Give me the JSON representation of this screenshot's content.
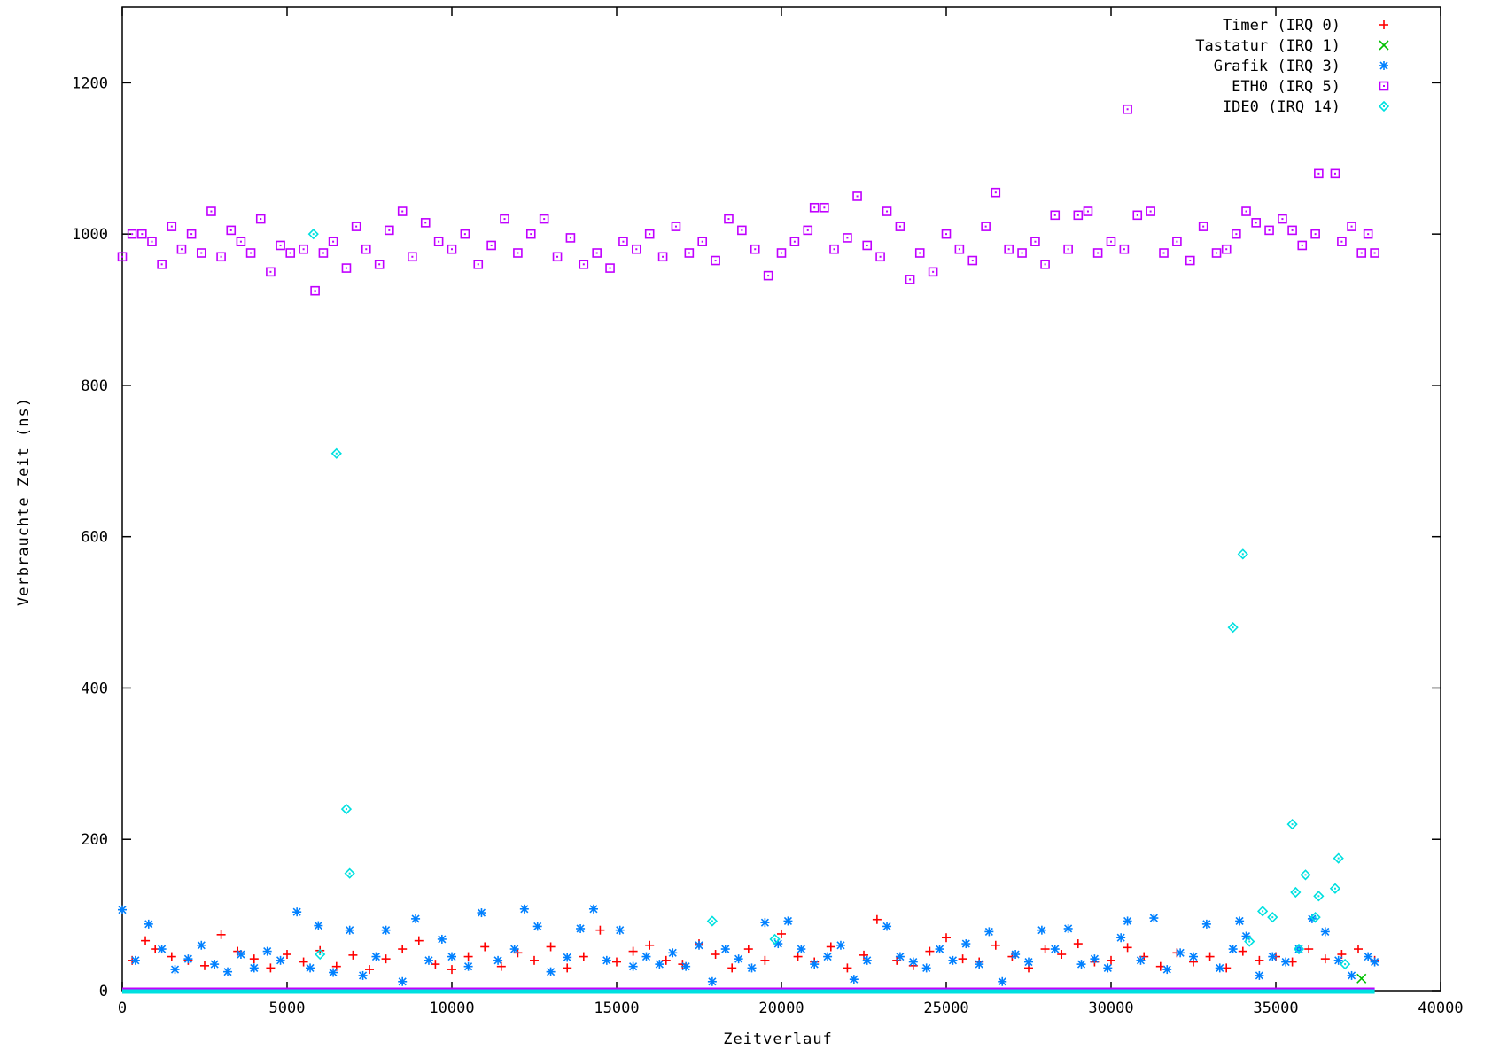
{
  "chart_data": {
    "type": "scatter",
    "xlabel": "Zeitverlauf",
    "ylabel": "Verbrauchte Zeit (ns)",
    "xlim": [
      0,
      40000
    ],
    "ylim": [
      0,
      1300
    ],
    "x_ticks": [
      0,
      5000,
      10000,
      15000,
      20000,
      25000,
      30000,
      35000,
      40000
    ],
    "y_ticks": [
      0,
      200,
      400,
      600,
      800,
      1000,
      1200
    ],
    "grid": false,
    "legend_position": "top-right",
    "series": [
      {
        "name": "Timer (IRQ 0)",
        "marker": "plus",
        "color": "#ff0000",
        "baseline": 0,
        "points": [
          [
            300,
            40
          ],
          [
            700,
            66
          ],
          [
            1000,
            55
          ],
          [
            1500,
            45
          ],
          [
            2000,
            40
          ],
          [
            2500,
            33
          ],
          [
            3000,
            74
          ],
          [
            3500,
            52
          ],
          [
            4000,
            42
          ],
          [
            4500,
            30
          ],
          [
            5000,
            48
          ],
          [
            5500,
            38
          ],
          [
            6000,
            53
          ],
          [
            6500,
            32
          ],
          [
            7000,
            47
          ],
          [
            7500,
            28
          ],
          [
            8000,
            42
          ],
          [
            8500,
            55
          ],
          [
            9000,
            66
          ],
          [
            9500,
            35
          ],
          [
            10000,
            28
          ],
          [
            10500,
            45
          ],
          [
            11000,
            58
          ],
          [
            11500,
            32
          ],
          [
            12000,
            50
          ],
          [
            12500,
            40
          ],
          [
            13000,
            58
          ],
          [
            13500,
            30
          ],
          [
            14000,
            45
          ],
          [
            14500,
            80
          ],
          [
            15000,
            38
          ],
          [
            15500,
            52
          ],
          [
            16000,
            60
          ],
          [
            16500,
            40
          ],
          [
            17000,
            35
          ],
          [
            17500,
            62
          ],
          [
            18000,
            48
          ],
          [
            18500,
            30
          ],
          [
            19000,
            55
          ],
          [
            19500,
            40
          ],
          [
            20000,
            75
          ],
          [
            20500,
            45
          ],
          [
            21000,
            38
          ],
          [
            21500,
            58
          ],
          [
            22000,
            30
          ],
          [
            22500,
            47
          ],
          [
            22900,
            94
          ],
          [
            23500,
            40
          ],
          [
            24000,
            33
          ],
          [
            24500,
            52
          ],
          [
            25000,
            70
          ],
          [
            25500,
            42
          ],
          [
            26000,
            38
          ],
          [
            26500,
            60
          ],
          [
            27000,
            45
          ],
          [
            27500,
            30
          ],
          [
            28000,
            55
          ],
          [
            28500,
            48
          ],
          [
            29000,
            62
          ],
          [
            29500,
            38
          ],
          [
            30000,
            40
          ],
          [
            30500,
            57
          ],
          [
            31000,
            45
          ],
          [
            31500,
            32
          ],
          [
            32000,
            50
          ],
          [
            32500,
            38
          ],
          [
            33000,
            45
          ],
          [
            33500,
            30
          ],
          [
            34000,
            52
          ],
          [
            34500,
            40
          ],
          [
            35000,
            45
          ],
          [
            35500,
            38
          ],
          [
            36000,
            55
          ],
          [
            36500,
            42
          ],
          [
            37000,
            48
          ],
          [
            37500,
            55
          ],
          [
            38000,
            40
          ]
        ]
      },
      {
        "name": "Tastatur (IRQ 1)",
        "marker": "cross",
        "color": "#00c000",
        "baseline": 0,
        "points": [
          [
            37600,
            16
          ]
        ]
      },
      {
        "name": "Grafik (IRQ  3)",
        "marker": "star",
        "color": "#0080ff",
        "baseline": 0,
        "points": [
          [
            0,
            107
          ],
          [
            400,
            40
          ],
          [
            800,
            88
          ],
          [
            1200,
            55
          ],
          [
            1600,
            28
          ],
          [
            2000,
            42
          ],
          [
            2400,
            60
          ],
          [
            2800,
            35
          ],
          [
            3200,
            25
          ],
          [
            3600,
            48
          ],
          [
            4000,
            30
          ],
          [
            4400,
            52
          ],
          [
            4800,
            40
          ],
          [
            5300,
            104
          ],
          [
            5700,
            30
          ],
          [
            5950,
            86
          ],
          [
            6400,
            24
          ],
          [
            6900,
            80
          ],
          [
            7300,
            20
          ],
          [
            7700,
            45
          ],
          [
            8000,
            80
          ],
          [
            8500,
            12
          ],
          [
            8900,
            95
          ],
          [
            9300,
            40
          ],
          [
            9700,
            68
          ],
          [
            10000,
            45
          ],
          [
            10500,
            32
          ],
          [
            10900,
            103
          ],
          [
            11400,
            40
          ],
          [
            11900,
            55
          ],
          [
            12200,
            108
          ],
          [
            12600,
            85
          ],
          [
            13000,
            25
          ],
          [
            13500,
            44
          ],
          [
            13900,
            82
          ],
          [
            14300,
            108
          ],
          [
            14700,
            40
          ],
          [
            15100,
            80
          ],
          [
            15500,
            32
          ],
          [
            15900,
            45
          ],
          [
            16300,
            35
          ],
          [
            16700,
            50
          ],
          [
            17100,
            32
          ],
          [
            17500,
            60
          ],
          [
            17900,
            12
          ],
          [
            18300,
            55
          ],
          [
            18700,
            42
          ],
          [
            19100,
            30
          ],
          [
            19500,
            90
          ],
          [
            19900,
            62
          ],
          [
            20200,
            92
          ],
          [
            20600,
            55
          ],
          [
            21000,
            35
          ],
          [
            21400,
            45
          ],
          [
            21800,
            60
          ],
          [
            22200,
            15
          ],
          [
            22600,
            40
          ],
          [
            23200,
            85
          ],
          [
            23600,
            45
          ],
          [
            24000,
            38
          ],
          [
            24400,
            30
          ],
          [
            24800,
            55
          ],
          [
            25200,
            40
          ],
          [
            25600,
            62
          ],
          [
            26000,
            35
          ],
          [
            26300,
            78
          ],
          [
            26700,
            12
          ],
          [
            27100,
            48
          ],
          [
            27500,
            38
          ],
          [
            27900,
            80
          ],
          [
            28300,
            55
          ],
          [
            28700,
            82
          ],
          [
            29100,
            35
          ],
          [
            29500,
            42
          ],
          [
            29900,
            30
          ],
          [
            30300,
            70
          ],
          [
            30500,
            92
          ],
          [
            30900,
            40
          ],
          [
            31300,
            96
          ],
          [
            31700,
            28
          ],
          [
            32100,
            50
          ],
          [
            32500,
            45
          ],
          [
            32900,
            88
          ],
          [
            33300,
            30
          ],
          [
            33700,
            55
          ],
          [
            33900,
            92
          ],
          [
            34100,
            72
          ],
          [
            34500,
            20
          ],
          [
            34900,
            45
          ],
          [
            35300,
            38
          ],
          [
            35700,
            55
          ],
          [
            36100,
            95
          ],
          [
            36500,
            78
          ],
          [
            36900,
            40
          ],
          [
            37300,
            20
          ],
          [
            37800,
            45
          ],
          [
            38000,
            38
          ]
        ]
      },
      {
        "name": "ETH0 (IRQ 5)",
        "marker": "square",
        "color": "#c000ff",
        "baseline": 0,
        "points": [
          [
            0,
            970
          ],
          [
            300,
            1000
          ],
          [
            600,
            1000
          ],
          [
            900,
            990
          ],
          [
            1200,
            960
          ],
          [
            1500,
            1010
          ],
          [
            1800,
            980
          ],
          [
            2100,
            1000
          ],
          [
            2400,
            975
          ],
          [
            2700,
            1030
          ],
          [
            3000,
            970
          ],
          [
            3300,
            1005
          ],
          [
            3600,
            990
          ],
          [
            3900,
            975
          ],
          [
            4200,
            1020
          ],
          [
            4500,
            950
          ],
          [
            4800,
            985
          ],
          [
            5100,
            975
          ],
          [
            5500,
            980
          ],
          [
            5850,
            925
          ],
          [
            6100,
            975
          ],
          [
            6400,
            990
          ],
          [
            6800,
            955
          ],
          [
            7100,
            1010
          ],
          [
            7400,
            980
          ],
          [
            7800,
            960
          ],
          [
            8100,
            1005
          ],
          [
            8500,
            1030
          ],
          [
            8800,
            970
          ],
          [
            9200,
            1015
          ],
          [
            9600,
            990
          ],
          [
            10000,
            980
          ],
          [
            10400,
            1000
          ],
          [
            10800,
            960
          ],
          [
            11200,
            985
          ],
          [
            11600,
            1020
          ],
          [
            12000,
            975
          ],
          [
            12400,
            1000
          ],
          [
            12800,
            1020
          ],
          [
            13200,
            970
          ],
          [
            13600,
            995
          ],
          [
            14000,
            960
          ],
          [
            14400,
            975
          ],
          [
            14800,
            955
          ],
          [
            15200,
            990
          ],
          [
            15600,
            980
          ],
          [
            16000,
            1000
          ],
          [
            16400,
            970
          ],
          [
            16800,
            1010
          ],
          [
            17200,
            975
          ],
          [
            17600,
            990
          ],
          [
            18000,
            965
          ],
          [
            18400,
            1020
          ],
          [
            18800,
            1005
          ],
          [
            19200,
            980
          ],
          [
            19600,
            945
          ],
          [
            20000,
            975
          ],
          [
            20400,
            990
          ],
          [
            20800,
            1005
          ],
          [
            21000,
            1035
          ],
          [
            21300,
            1035
          ],
          [
            21600,
            980
          ],
          [
            22000,
            995
          ],
          [
            22300,
            1050
          ],
          [
            22600,
            985
          ],
          [
            23000,
            970
          ],
          [
            23200,
            1030
          ],
          [
            23600,
            1010
          ],
          [
            23900,
            940
          ],
          [
            24200,
            975
          ],
          [
            24600,
            950
          ],
          [
            25000,
            1000
          ],
          [
            25400,
            980
          ],
          [
            25800,
            965
          ],
          [
            26200,
            1010
          ],
          [
            26500,
            1055
          ],
          [
            26900,
            980
          ],
          [
            27300,
            975
          ],
          [
            27700,
            990
          ],
          [
            28000,
            960
          ],
          [
            28300,
            1025
          ],
          [
            28700,
            980
          ],
          [
            29000,
            1025
          ],
          [
            29300,
            1030
          ],
          [
            29600,
            975
          ],
          [
            30000,
            990
          ],
          [
            30400,
            980
          ],
          [
            30500,
            1165
          ],
          [
            30800,
            1025
          ],
          [
            31200,
            1030
          ],
          [
            31600,
            975
          ],
          [
            32000,
            990
          ],
          [
            32400,
            965
          ],
          [
            32800,
            1010
          ],
          [
            33200,
            975
          ],
          [
            33500,
            980
          ],
          [
            33800,
            1000
          ],
          [
            34100,
            1030
          ],
          [
            34400,
            1015
          ],
          [
            34800,
            1005
          ],
          [
            35200,
            1020
          ],
          [
            35500,
            1005
          ],
          [
            35800,
            985
          ],
          [
            36200,
            1000
          ],
          [
            36300,
            1080
          ],
          [
            36800,
            1080
          ],
          [
            37000,
            990
          ],
          [
            37300,
            1010
          ],
          [
            37600,
            975
          ],
          [
            37800,
            1000
          ],
          [
            38000,
            975
          ]
        ]
      },
      {
        "name": "IDE0 (IRQ 14)",
        "marker": "diamond",
        "color": "#00e0e0",
        "baseline": 0,
        "points": [
          [
            5800,
            1000
          ],
          [
            6000,
            48
          ],
          [
            6500,
            710
          ],
          [
            6800,
            240
          ],
          [
            6900,
            155
          ],
          [
            17900,
            92
          ],
          [
            19800,
            68
          ],
          [
            33700,
            480
          ],
          [
            34000,
            577
          ],
          [
            34200,
            65
          ],
          [
            34600,
            105
          ],
          [
            34900,
            97
          ],
          [
            35500,
            220
          ],
          [
            35600,
            130
          ],
          [
            35700,
            55
          ],
          [
            35900,
            153
          ],
          [
            36200,
            97
          ],
          [
            36300,
            125
          ],
          [
            36800,
            135
          ],
          [
            36900,
            175
          ],
          [
            37100,
            35
          ]
        ]
      }
    ]
  }
}
